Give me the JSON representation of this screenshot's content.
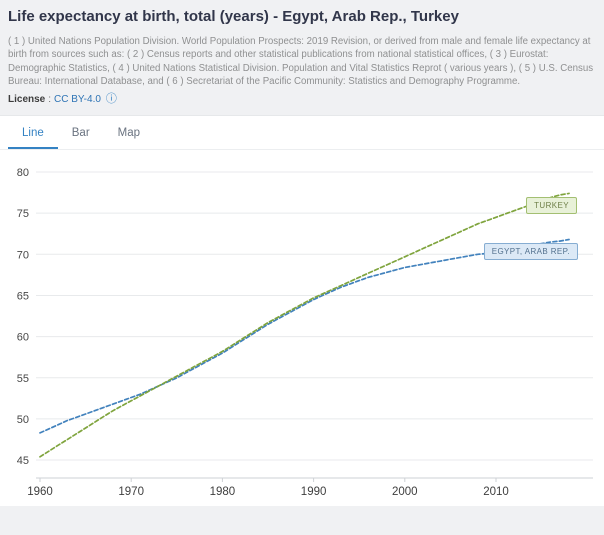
{
  "header": {
    "title": "Life expectancy at birth, total (years) - Egypt, Arab Rep., Turkey",
    "source_text": "( 1 ) United Nations Population Division. World Population Prospects: 2019 Revision, or derived from male and female life expectancy at birth from sources such as: ( 2 ) Census reports and other statistical publications from national statistical offices, ( 3 ) Eurostat: Demographic Statistics, ( 4 ) United Nations Statistical Division. Population and Vital Statistics Reprot ( various years ), ( 5 ) U.S. Census Bureau: International Database, and ( 6 ) Secretariat of the Pacific Community: Statistics and Demography Programme.",
    "license_label": "License",
    "license_separator": ":",
    "license_value": "CC BY-4.0"
  },
  "icons": {
    "info_icon": "ⓘ"
  },
  "tabs": [
    {
      "label": "Line",
      "active": true
    },
    {
      "label": "Bar",
      "active": false
    },
    {
      "label": "Map",
      "active": false
    }
  ],
  "chart_data": {
    "type": "line",
    "title": "Life expectancy at birth, total (years) - Egypt, Arab Rep., Turkey",
    "xlabel": "",
    "ylabel": "",
    "line_style": "dashed",
    "grid": true,
    "xlim": [
      1960,
      2019
    ],
    "ylim": [
      42.6,
      80
    ],
    "xticks": [
      1960,
      1970,
      1980,
      1990,
      2000,
      2010
    ],
    "yticks": [
      45,
      50,
      55,
      60,
      65,
      70,
      75,
      80
    ],
    "x": [
      1960,
      1961,
      1962,
      1963,
      1964,
      1965,
      1966,
      1967,
      1968,
      1969,
      1970,
      1971,
      1972,
      1973,
      1974,
      1975,
      1976,
      1977,
      1978,
      1979,
      1980,
      1981,
      1982,
      1983,
      1984,
      1985,
      1986,
      1987,
      1988,
      1989,
      1990,
      1991,
      1992,
      1993,
      1994,
      1995,
      1996,
      1997,
      1998,
      1999,
      2000,
      2001,
      2002,
      2003,
      2004,
      2005,
      2006,
      2007,
      2008,
      2009,
      2010,
      2011,
      2012,
      2013,
      2014,
      2015,
      2016,
      2017,
      2018
    ],
    "series": [
      {
        "name": "EGYPT, ARAB REP.",
        "color": "#4282bd",
        "values": [
          48.3,
          48.8,
          49.3,
          49.8,
          50.2,
          50.6,
          51.0,
          51.4,
          51.8,
          52.2,
          52.6,
          53.0,
          53.5,
          54.0,
          54.5,
          55.0,
          55.6,
          56.2,
          56.8,
          57.4,
          58.0,
          58.7,
          59.4,
          60.1,
          60.8,
          61.5,
          62.1,
          62.7,
          63.3,
          63.9,
          64.5,
          65.0,
          65.5,
          66.0,
          66.4,
          66.8,
          67.2,
          67.5,
          67.8,
          68.1,
          68.4,
          68.6,
          68.8,
          69.0,
          69.2,
          69.4,
          69.6,
          69.8,
          70.0,
          70.1,
          70.3,
          70.5,
          70.7,
          70.9,
          71.1,
          71.3,
          71.5,
          71.6,
          71.8
        ]
      },
      {
        "name": "TURKEY",
        "color": "#7fa43d",
        "values": [
          45.4,
          46.1,
          46.8,
          47.5,
          48.2,
          48.9,
          49.6,
          50.3,
          51.0,
          51.6,
          52.2,
          52.8,
          53.4,
          54.0,
          54.6,
          55.2,
          55.8,
          56.4,
          57.0,
          57.6,
          58.2,
          58.9,
          59.6,
          60.3,
          61.0,
          61.7,
          62.3,
          62.9,
          63.5,
          64.1,
          64.7,
          65.2,
          65.7,
          66.2,
          66.7,
          67.2,
          67.7,
          68.2,
          68.7,
          69.2,
          69.7,
          70.2,
          70.7,
          71.2,
          71.7,
          72.2,
          72.7,
          73.2,
          73.7,
          74.1,
          74.5,
          74.9,
          75.3,
          75.7,
          76.1,
          76.5,
          76.9,
          77.2,
          77.4
        ]
      }
    ],
    "legend_position": "inline-right-labels"
  }
}
